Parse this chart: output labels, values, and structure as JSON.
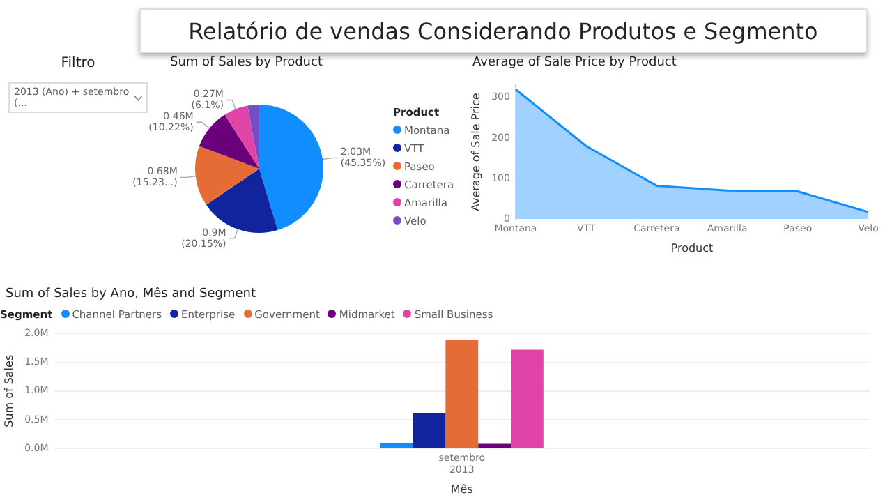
{
  "chart_data": [
    {
      "type": "other",
      "title": "Relatório de vendas Considerando Produtos e Segmento"
    },
    {
      "type": "other",
      "title": "Filtro",
      "annotations": [
        "2013 (Ano) + setembro (..."
      ]
    },
    {
      "type": "pie",
      "title": "Sum of Sales by Product",
      "legend_title": "Product",
      "legend": "right",
      "categories": [
        "Montana",
        "VTT",
        "Paseo",
        "Carretera",
        "Amarilla",
        "Velo"
      ],
      "values": [
        45.35,
        20.15,
        15.23,
        10.22,
        6.1,
        2.95
      ],
      "value_labels": [
        "2.03M (45.35%)",
        "0.9M (20.15%)",
        "0.68M (15.23...)",
        "0.46M (10.22%)",
        "0.27M (6.1%)",
        null
      ],
      "colors": [
        "#118dff",
        "#12239e",
        "#e66c37",
        "#6b007b",
        "#e044a7",
        "#744ec2"
      ]
    },
    {
      "type": "area",
      "title": "Average of Sale Price by Product",
      "xlabel": "Product",
      "ylabel": "Average of Sale Price",
      "categories": [
        "Montana",
        "VTT",
        "Carretera",
        "Amarilla",
        "Paseo",
        "Velo"
      ],
      "series": [
        {
          "color": "#118dff",
          "values": [
            320,
            180,
            82,
            70,
            68,
            17
          ]
        }
      ],
      "ylim": [
        0,
        330
      ],
      "yticks": [
        0,
        100,
        200,
        300
      ]
    },
    {
      "type": "bar",
      "title": "Sum of Sales by Ano, Mês and Segment",
      "xlabel": "Mês",
      "ylabel": "Sum of Sales",
      "legend_title": "Segment",
      "legend": "top left",
      "grid": "y",
      "categories": [
        "setembro 2013"
      ],
      "series": [
        {
          "name": "Channel Partners",
          "color": "#118dff",
          "values": [
            0.1
          ]
        },
        {
          "name": "Enterprise",
          "color": "#12239e",
          "values": [
            0.62
          ]
        },
        {
          "name": "Government",
          "color": "#e66c37",
          "values": [
            1.89
          ]
        },
        {
          "name": "Midmarket",
          "color": "#6b007b",
          "values": [
            0.08
          ]
        },
        {
          "name": "Small Business",
          "color": "#e044a7",
          "values": [
            1.72
          ]
        }
      ],
      "ylim": [
        0,
        2.0
      ],
      "yticks": [
        {
          "value": 0,
          "label": "0.0M"
        },
        {
          "value": 0.5,
          "label": "0.5M"
        },
        {
          "value": 1.0,
          "label": "1.0M"
        },
        {
          "value": 1.5,
          "label": "1.5M"
        },
        {
          "value": 2.0,
          "label": "2.0M"
        }
      ]
    }
  ]
}
